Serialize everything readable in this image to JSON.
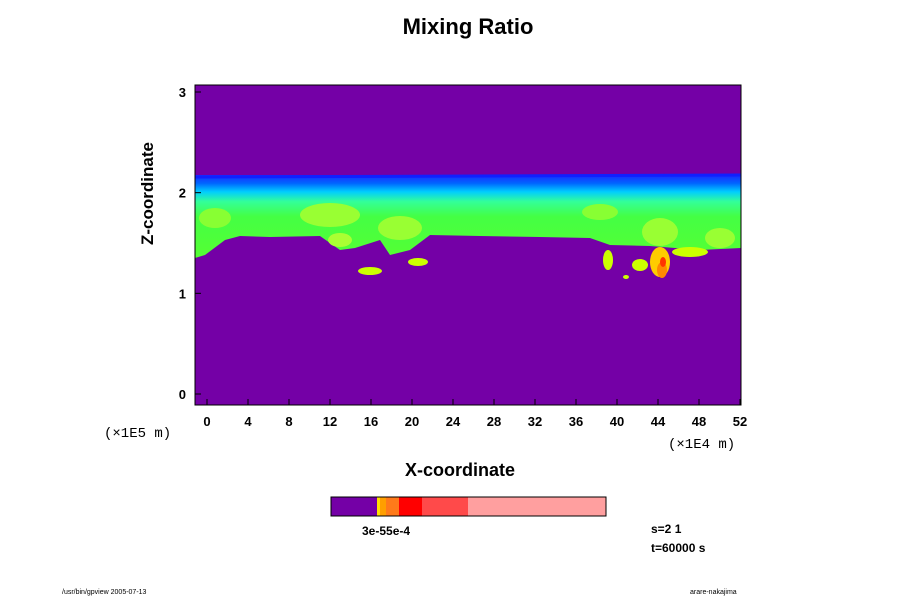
{
  "chart_data": {
    "type": "heatmap",
    "title": "Mixing Ratio",
    "xlabel": "X-coordinate",
    "ylabel": "Z-coordinate",
    "x_ticks": [
      "0",
      "4",
      "8",
      "12",
      "16",
      "20",
      "24",
      "28",
      "32",
      "36",
      "40",
      "44",
      "48",
      "52"
    ],
    "y_ticks": [
      "0",
      "1",
      "2",
      "3"
    ],
    "xlim": [
      0,
      52
    ],
    "ylim": [
      0,
      3
    ],
    "x_unit": "(×1E4 m)",
    "y_unit": "(×1E5 m)",
    "colorbar_label": "3e-55e-4",
    "colorbar_colors": [
      "#7400a6",
      "#ffe000",
      "#ff9f00",
      "#ff7a1a",
      "#ff0000",
      "#ff4a4a",
      "#ff9f9f"
    ],
    "background_color": "#7400a6"
  },
  "annotations": {
    "s": "s=2 1",
    "t": "t=60000 s",
    "footer_left": "/usr/bin/gpview 2005-07-13",
    "footer_right": "arare-nakajima"
  }
}
